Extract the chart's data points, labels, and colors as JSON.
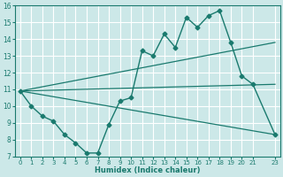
{
  "xlabel": "Humidex (Indice chaleur)",
  "ylabel": "",
  "background_color": "#cce8e8",
  "grid_color": "#ffffff",
  "line_color": "#1a7a6e",
  "xlim": [
    -0.5,
    23.5
  ],
  "ylim": [
    7,
    16
  ],
  "xticks": [
    0,
    1,
    2,
    3,
    4,
    5,
    6,
    7,
    8,
    9,
    10,
    11,
    12,
    13,
    14,
    15,
    16,
    17,
    18,
    19,
    20,
    21,
    23
  ],
  "yticks": [
    7,
    8,
    9,
    10,
    11,
    12,
    13,
    14,
    15,
    16
  ],
  "series": [
    {
      "x": [
        0,
        1,
        2,
        3,
        4,
        5,
        6,
        7,
        8,
        9,
        10,
        11,
        12,
        13,
        14,
        15,
        16,
        17,
        18,
        19,
        20,
        21,
        23
      ],
      "y": [
        10.9,
        10.0,
        9.4,
        9.1,
        8.3,
        7.8,
        7.2,
        7.2,
        8.9,
        10.3,
        10.5,
        13.3,
        13.0,
        14.3,
        13.5,
        15.3,
        14.7,
        15.4,
        15.7,
        13.8,
        11.8,
        11.3,
        8.3
      ],
      "marker": "D",
      "markersize": 2.5,
      "linewidth": 1.0
    },
    {
      "x": [
        0,
        23
      ],
      "y": [
        10.9,
        13.8
      ],
      "marker": null,
      "markersize": 0,
      "linewidth": 0.9
    },
    {
      "x": [
        0,
        23
      ],
      "y": [
        10.9,
        11.3
      ],
      "marker": null,
      "markersize": 0,
      "linewidth": 0.9
    },
    {
      "x": [
        0,
        23
      ],
      "y": [
        10.9,
        8.3
      ],
      "marker": null,
      "markersize": 0,
      "linewidth": 0.9
    }
  ]
}
